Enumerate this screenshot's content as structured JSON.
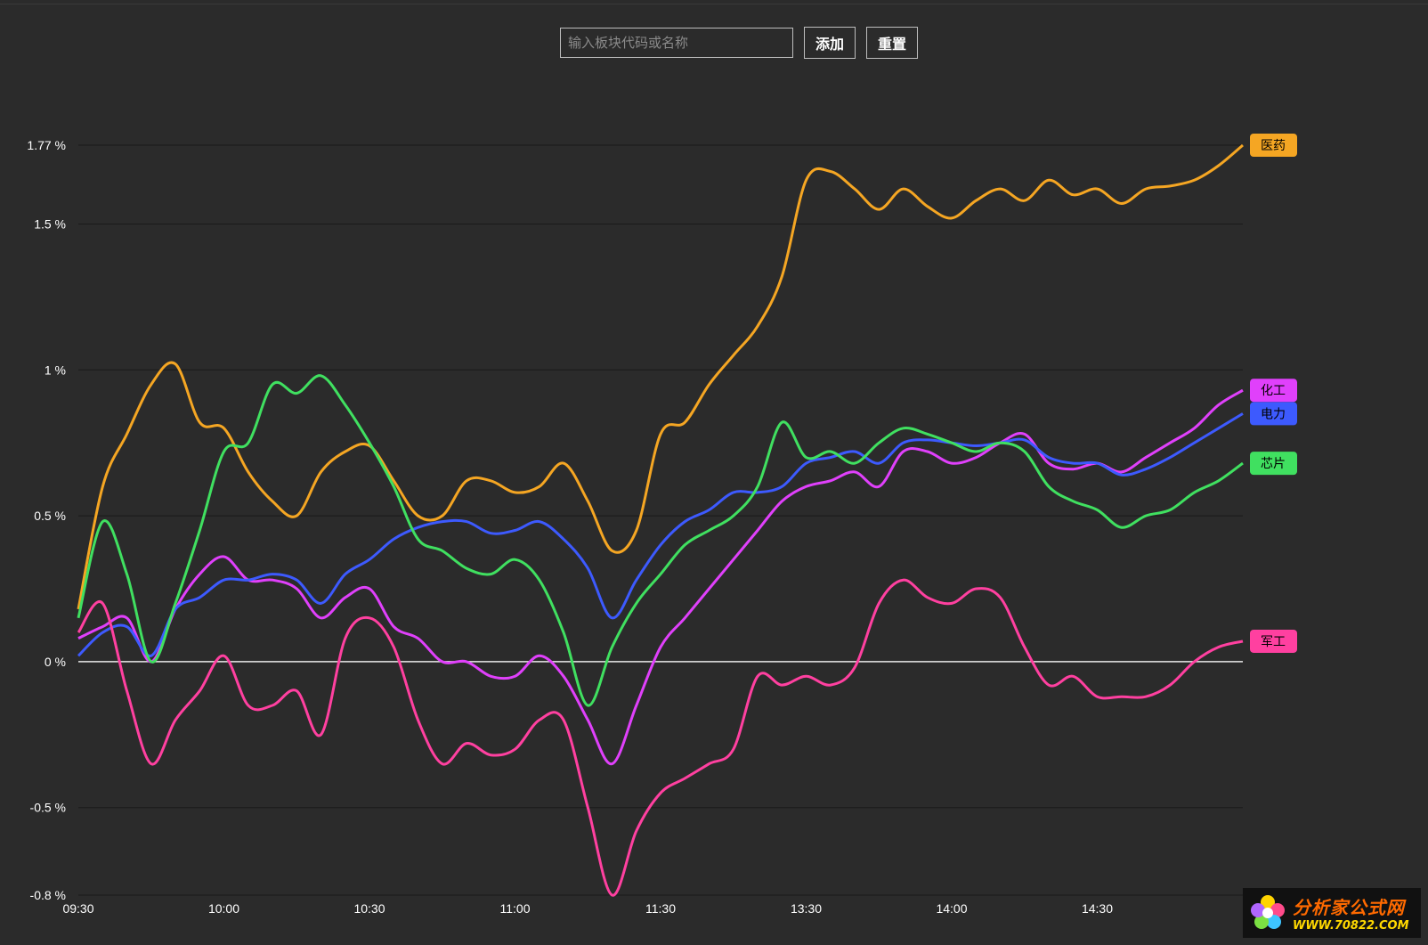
{
  "toolbar": {
    "search_placeholder": "输入板块代码或名称",
    "add_label": "添加",
    "reset_label": "重置"
  },
  "watermark": {
    "title": "分析家公式网",
    "url": "WWW.70822.COM"
  },
  "chart_data": {
    "type": "line",
    "title": "",
    "xlabel": "",
    "ylabel": "",
    "ylim": [
      -0.8,
      1.77
    ],
    "y_ticks": [
      {
        "value": 1.77,
        "label": "1.77 %"
      },
      {
        "value": 1.5,
        "label": "1.5 %"
      },
      {
        "value": 1.0,
        "label": "1 %"
      },
      {
        "value": 0.5,
        "label": "0.5 %"
      },
      {
        "value": 0.0,
        "label": "0 %"
      },
      {
        "value": -0.5,
        "label": "-0.5 %"
      },
      {
        "value": -0.8,
        "label": "-0.8 %"
      }
    ],
    "x_ticks": [
      "09:30",
      "10:00",
      "10:30",
      "11:00",
      "11:30",
      "13:30",
      "14:00",
      "14:30"
    ],
    "grid": true,
    "legend": "right-end labels",
    "series": [
      {
        "name": "医药",
        "color": "#f5a623",
        "x": [
          "09:30",
          "09:35",
          "09:40",
          "09:45",
          "09:50",
          "09:55",
          "10:00",
          "10:05",
          "10:10",
          "10:15",
          "10:20",
          "10:25",
          "10:30",
          "10:35",
          "10:40",
          "10:45",
          "10:50",
          "10:55",
          "11:00",
          "11:05",
          "11:10",
          "11:15",
          "11:20",
          "11:25",
          "11:30",
          "13:05",
          "13:10",
          "13:15",
          "13:20",
          "13:25",
          "13:30",
          "13:35",
          "13:40",
          "13:45",
          "13:50",
          "13:55",
          "14:00",
          "14:05",
          "14:10",
          "14:15",
          "14:20",
          "14:25",
          "14:30",
          "14:35",
          "14:40",
          "14:45",
          "14:50",
          "14:55",
          "15:00"
        ],
        "values": [
          0.18,
          0.6,
          0.78,
          0.95,
          1.02,
          0.82,
          0.8,
          0.65,
          0.55,
          0.5,
          0.65,
          0.72,
          0.74,
          0.62,
          0.5,
          0.5,
          0.62,
          0.62,
          0.58,
          0.6,
          0.68,
          0.55,
          0.38,
          0.45,
          0.78,
          0.82,
          0.95,
          1.05,
          1.15,
          1.32,
          1.65,
          1.68,
          1.62,
          1.55,
          1.62,
          1.56,
          1.52,
          1.58,
          1.62,
          1.58,
          1.65,
          1.6,
          1.62,
          1.57,
          1.62,
          1.63,
          1.65,
          1.7,
          1.77
        ]
      },
      {
        "name": "化工",
        "color": "#e040fb",
        "x": [
          "09:30",
          "09:35",
          "09:40",
          "09:45",
          "09:50",
          "09:55",
          "10:00",
          "10:05",
          "10:10",
          "10:15",
          "10:20",
          "10:25",
          "10:30",
          "10:35",
          "10:40",
          "10:45",
          "10:50",
          "10:55",
          "11:00",
          "11:05",
          "11:10",
          "11:15",
          "11:20",
          "11:25",
          "11:30",
          "13:05",
          "13:10",
          "13:15",
          "13:20",
          "13:25",
          "13:30",
          "13:35",
          "13:40",
          "13:45",
          "13:50",
          "13:55",
          "14:00",
          "14:05",
          "14:10",
          "14:15",
          "14:20",
          "14:25",
          "14:30",
          "14:35",
          "14:40",
          "14:45",
          "14:50",
          "14:55",
          "15:00"
        ],
        "values": [
          0.08,
          0.12,
          0.15,
          0.0,
          0.18,
          0.3,
          0.36,
          0.28,
          0.28,
          0.25,
          0.15,
          0.22,
          0.25,
          0.12,
          0.08,
          0.0,
          0.0,
          -0.05,
          -0.05,
          0.02,
          -0.05,
          -0.2,
          -0.35,
          -0.15,
          0.05,
          0.15,
          0.25,
          0.35,
          0.45,
          0.55,
          0.6,
          0.62,
          0.65,
          0.6,
          0.72,
          0.72,
          0.68,
          0.7,
          0.75,
          0.78,
          0.68,
          0.66,
          0.68,
          0.65,
          0.7,
          0.75,
          0.8,
          0.88,
          0.93
        ]
      },
      {
        "name": "电力",
        "color": "#3d5afe",
        "x": [
          "09:30",
          "09:35",
          "09:40",
          "09:45",
          "09:50",
          "09:55",
          "10:00",
          "10:05",
          "10:10",
          "10:15",
          "10:20",
          "10:25",
          "10:30",
          "10:35",
          "10:40",
          "10:45",
          "10:50",
          "10:55",
          "11:00",
          "11:05",
          "11:10",
          "11:15",
          "11:20",
          "11:25",
          "11:30",
          "13:05",
          "13:10",
          "13:15",
          "13:20",
          "13:25",
          "13:30",
          "13:35",
          "13:40",
          "13:45",
          "13:50",
          "13:55",
          "14:00",
          "14:05",
          "14:10",
          "14:15",
          "14:20",
          "14:25",
          "14:30",
          "14:35",
          "14:40",
          "14:45",
          "14:50",
          "14:55",
          "15:00"
        ],
        "values": [
          0.02,
          0.1,
          0.12,
          0.02,
          0.18,
          0.22,
          0.28,
          0.28,
          0.3,
          0.28,
          0.2,
          0.3,
          0.35,
          0.42,
          0.46,
          0.48,
          0.48,
          0.44,
          0.45,
          0.48,
          0.42,
          0.32,
          0.15,
          0.28,
          0.4,
          0.48,
          0.52,
          0.58,
          0.58,
          0.6,
          0.68,
          0.7,
          0.72,
          0.68,
          0.75,
          0.76,
          0.75,
          0.74,
          0.75,
          0.76,
          0.7,
          0.68,
          0.68,
          0.64,
          0.66,
          0.7,
          0.75,
          0.8,
          0.85
        ]
      },
      {
        "name": "芯片",
        "color": "#40e060",
        "x": [
          "09:30",
          "09:35",
          "09:40",
          "09:45",
          "09:50",
          "09:55",
          "10:00",
          "10:05",
          "10:10",
          "10:15",
          "10:20",
          "10:25",
          "10:30",
          "10:35",
          "10:40",
          "10:45",
          "10:50",
          "10:55",
          "11:00",
          "11:05",
          "11:10",
          "11:15",
          "11:20",
          "11:25",
          "11:30",
          "13:05",
          "13:10",
          "13:15",
          "13:20",
          "13:25",
          "13:30",
          "13:35",
          "13:40",
          "13:45",
          "13:50",
          "13:55",
          "14:00",
          "14:05",
          "14:10",
          "14:15",
          "14:20",
          "14:25",
          "14:30",
          "14:35",
          "14:40",
          "14:45",
          "14:50",
          "14:55",
          "15:00"
        ],
        "values": [
          0.15,
          0.48,
          0.3,
          0.0,
          0.2,
          0.45,
          0.72,
          0.75,
          0.95,
          0.92,
          0.98,
          0.88,
          0.75,
          0.6,
          0.42,
          0.38,
          0.32,
          0.3,
          0.35,
          0.28,
          0.1,
          -0.15,
          0.05,
          0.2,
          0.3,
          0.4,
          0.45,
          0.5,
          0.6,
          0.82,
          0.7,
          0.72,
          0.68,
          0.75,
          0.8,
          0.78,
          0.75,
          0.72,
          0.75,
          0.72,
          0.6,
          0.55,
          0.52,
          0.46,
          0.5,
          0.52,
          0.58,
          0.62,
          0.68
        ]
      },
      {
        "name": "军工",
        "color": "#ff40a0",
        "x": [
          "09:30",
          "09:35",
          "09:40",
          "09:45",
          "09:50",
          "09:55",
          "10:00",
          "10:05",
          "10:10",
          "10:15",
          "10:20",
          "10:25",
          "10:30",
          "10:35",
          "10:40",
          "10:45",
          "10:50",
          "10:55",
          "11:00",
          "11:05",
          "11:10",
          "11:15",
          "11:20",
          "11:25",
          "11:30",
          "13:05",
          "13:10",
          "13:15",
          "13:20",
          "13:25",
          "13:30",
          "13:35",
          "13:40",
          "13:45",
          "13:50",
          "13:55",
          "14:00",
          "14:05",
          "14:10",
          "14:15",
          "14:20",
          "14:25",
          "14:30",
          "14:35",
          "14:40",
          "14:45",
          "14:50",
          "14:55",
          "15:00"
        ],
        "values": [
          0.1,
          0.2,
          -0.1,
          -0.35,
          -0.2,
          -0.1,
          0.02,
          -0.15,
          -0.15,
          -0.1,
          -0.25,
          0.08,
          0.15,
          0.05,
          -0.2,
          -0.35,
          -0.28,
          -0.32,
          -0.3,
          -0.2,
          -0.2,
          -0.5,
          -0.8,
          -0.58,
          -0.45,
          -0.4,
          -0.35,
          -0.3,
          -0.05,
          -0.08,
          -0.05,
          -0.08,
          -0.02,
          0.2,
          0.28,
          0.22,
          0.2,
          0.25,
          0.22,
          0.05,
          -0.08,
          -0.05,
          -0.12,
          -0.12,
          -0.12,
          -0.08,
          0.0,
          0.05,
          0.07
        ]
      }
    ]
  }
}
